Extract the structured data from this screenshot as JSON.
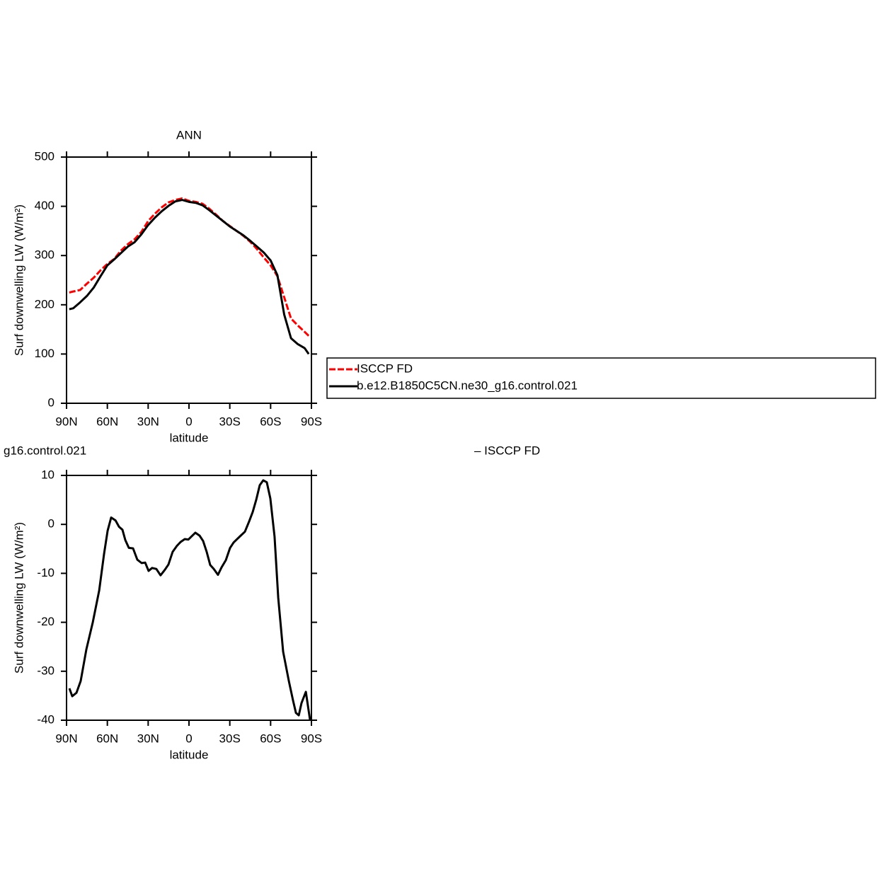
{
  "chart_data": [
    {
      "type": "line",
      "title": "ANN",
      "xlabel": "latitude",
      "ylabel": "Surf downwelling LW (W/m²)",
      "xlim": [
        90,
        -90
      ],
      "ylim": [
        0,
        500
      ],
      "xticks": [
        {
          "value": 90,
          "label": "90N"
        },
        {
          "value": 60,
          "label": "60N"
        },
        {
          "value": 30,
          "label": "30N"
        },
        0,
        {
          "value": -30,
          "label": "30S"
        },
        {
          "value": -60,
          "label": "60S"
        },
        {
          "value": -90,
          "label": "90S"
        }
      ],
      "yticks": [
        0,
        100,
        200,
        300,
        400,
        500
      ],
      "legend": "right",
      "x": [
        88,
        85,
        80,
        75,
        70,
        65,
        60,
        55,
        50,
        45,
        40,
        35,
        30,
        25,
        20,
        15,
        10,
        5,
        0,
        -5,
        -10,
        -15,
        -20,
        -25,
        -30,
        -35,
        -40,
        -45,
        -50,
        -55,
        -60,
        -65,
        -70,
        -75,
        -80,
        -85,
        -88
      ],
      "series": [
        {
          "name": "ISCCP FD",
          "color": "#ff0000",
          "dashed": true,
          "values": [
            225,
            227,
            230,
            243,
            255,
            270,
            283,
            293,
            310,
            323,
            333,
            348,
            370,
            385,
            398,
            408,
            413,
            416,
            411,
            409,
            405,
            395,
            383,
            370,
            360,
            350,
            340,
            328,
            313,
            296,
            280,
            258,
            215,
            172,
            158,
            145,
            137
          ]
        },
        {
          "name": "b.e12.B1850C5CN.ne30_g16.control.021",
          "color": "#000000",
          "dashed": false,
          "values": [
            191,
            193,
            205,
            218,
            235,
            258,
            280,
            292,
            305,
            318,
            327,
            343,
            362,
            377,
            390,
            401,
            410,
            413,
            409,
            407,
            402,
            392,
            381,
            370,
            359,
            350,
            341,
            330,
            318,
            306,
            290,
            260,
            180,
            132,
            120,
            112,
            100
          ]
        }
      ]
    },
    {
      "type": "line",
      "title": "g16.control.021",
      "subtitle": "– ISCCP FD",
      "xlabel": "latitude",
      "ylabel": "Surf downwelling LW (W/m²)",
      "xlim": [
        90,
        -90
      ],
      "ylim": [
        -40,
        10
      ],
      "xticks": [
        {
          "value": 90,
          "label": "90N"
        },
        {
          "value": 60,
          "label": "60N"
        },
        {
          "value": 30,
          "label": "30N"
        },
        0,
        {
          "value": -30,
          "label": "30S"
        },
        {
          "value": -60,
          "label": "60S"
        },
        {
          "value": -90,
          "label": "90S"
        }
      ],
      "yticks": [
        10,
        0,
        -10,
        -20,
        -30,
        -40
      ],
      "color": "#000000",
      "x": [
        87.9,
        85.8,
        82.7,
        79.6,
        75.4,
        70.7,
        66,
        62.4,
        59.8,
        57.2,
        54,
        51.4,
        48.9,
        46.8,
        44.2,
        41.1,
        38,
        34.8,
        32.2,
        29.7,
        27.1,
        24,
        20.9,
        17.8,
        15.1,
        12,
        8.9,
        6.2,
        3.1,
        0.5,
        -2.1,
        -4.7,
        -7.8,
        -10.4,
        -13,
        -15.6,
        -18.2,
        -21.3,
        -23.9,
        -27.1,
        -30.2,
        -32.8,
        -35.4,
        -38,
        -41.1,
        -44.2,
        -46.8,
        -49.4,
        -52,
        -54.6,
        -57.2,
        -59.8,
        -62.9,
        -65.6,
        -69.2,
        -73.4,
        -76.5,
        -78.6,
        -80.7,
        -82.7,
        -85.9,
        -89
      ],
      "values": [
        -33.5,
        -35.1,
        -34.4,
        -32,
        -25.5,
        -20,
        -13.5,
        -6,
        -1.3,
        1.4,
        0.8,
        -0.5,
        -1.1,
        -3.2,
        -4.8,
        -4.9,
        -7.2,
        -7.9,
        -7.8,
        -9.5,
        -8.9,
        -9.1,
        -10.4,
        -9.3,
        -8.2,
        -5.6,
        -4.4,
        -3.6,
        -3,
        -3.1,
        -2.4,
        -1.7,
        -2.3,
        -3.4,
        -5.6,
        -8.3,
        -9.1,
        -10.3,
        -8.8,
        -7.3,
        -4.8,
        -3.7,
        -3,
        -2.3,
        -1.5,
        0.6,
        2.5,
        5,
        8,
        9,
        8.6,
        5.3,
        -2.5,
        -15,
        -26,
        -32,
        -36,
        -38.5,
        -39,
        -36.5,
        -34.2,
        -40
      ]
    }
  ]
}
